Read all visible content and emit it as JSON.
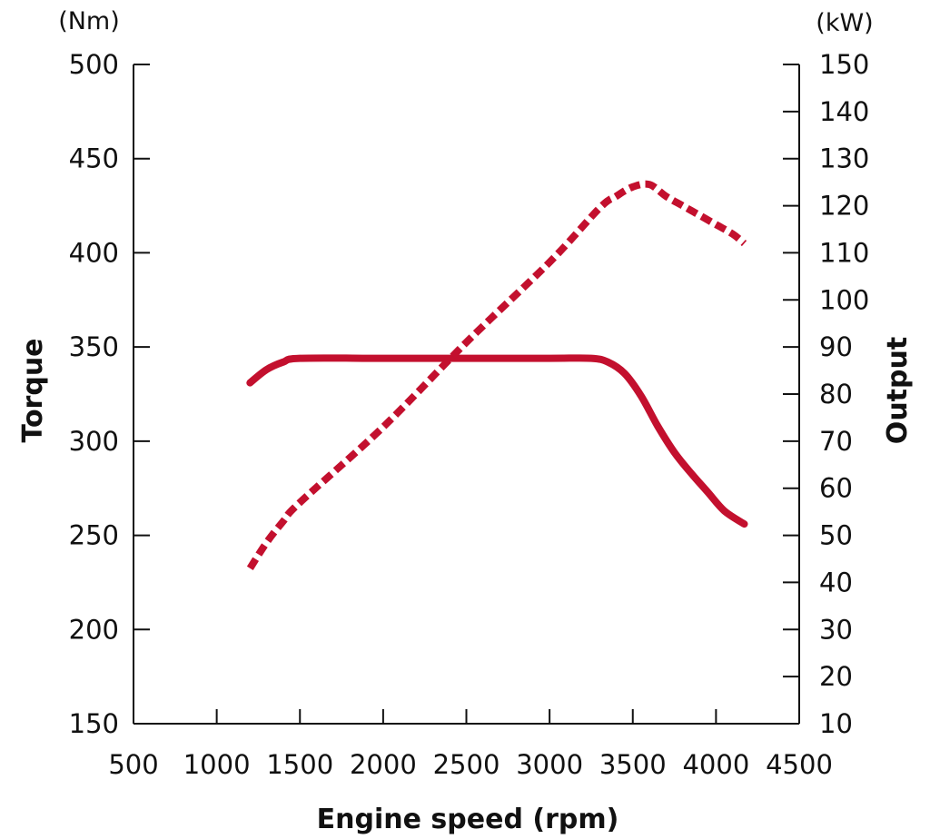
{
  "chart_data": {
    "type": "line",
    "title": "",
    "xlabel": "Engine speed (rpm)",
    "ylabel_left": "Torque",
    "ylabel_right": "Output",
    "unit_left": "(Nm)",
    "unit_right": "(kW)",
    "xlim": [
      500,
      4500
    ],
    "ylim_left": [
      150,
      500
    ],
    "ylim_right": [
      10,
      150
    ],
    "x_ticks": [
      500,
      1000,
      1500,
      2000,
      2500,
      3000,
      3500,
      4000,
      4500
    ],
    "y_left_ticks": [
      150,
      200,
      250,
      300,
      350,
      400,
      450,
      500
    ],
    "y_right_ticks": [
      10,
      20,
      30,
      40,
      50,
      60,
      70,
      80,
      90,
      100,
      110,
      120,
      130,
      140,
      150
    ],
    "grid": false,
    "colors": {
      "series": "#c3102e",
      "axis": "#111111"
    },
    "series": [
      {
        "axis": "left",
        "style": "solid",
        "x": [
          1200,
          1300,
          1400,
          1500,
          2000,
          2500,
          3000,
          3250,
          3350,
          3450,
          3550,
          3650,
          3750,
          3850,
          3950,
          4050,
          4170
        ],
        "y": [
          331,
          338,
          342,
          344,
          344,
          344,
          344,
          344,
          342,
          336,
          324,
          308,
          294,
          283,
          273,
          263,
          256
        ]
      },
      {
        "axis": "right",
        "style": "dashed",
        "x": [
          1200,
          1300,
          1400,
          1500,
          2000,
          2500,
          3000,
          3300,
          3400,
          3500,
          3600,
          3700,
          3800,
          3900,
          4000,
          4100,
          4170
        ],
        "y": [
          43,
          48.5,
          53,
          57,
          73,
          91,
          108,
          119.5,
          122,
          124,
          124.5,
          122,
          120,
          118,
          116,
          114,
          112
        ]
      }
    ]
  }
}
